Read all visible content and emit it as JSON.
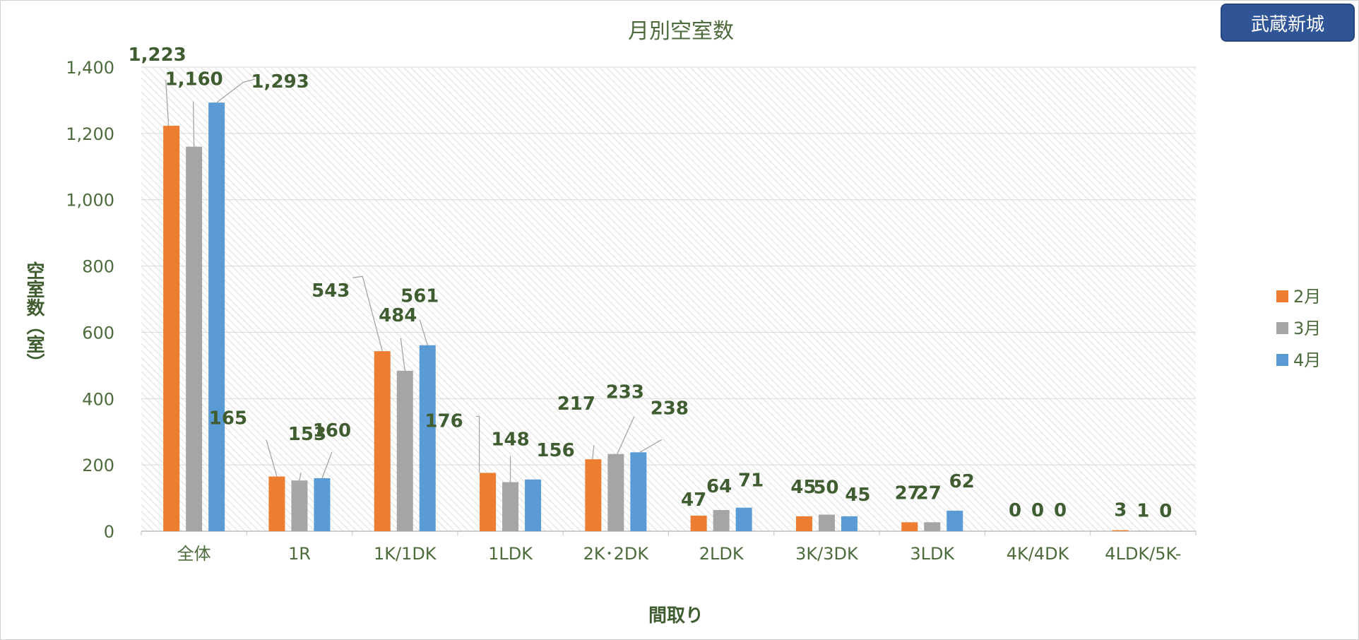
{
  "badge": "武蔵新城",
  "chart_data": {
    "type": "bar",
    "title": "月別空室数",
    "xlabel": "間取り",
    "ylabel": "空室数（室）",
    "ylim": [
      0,
      1400
    ],
    "yticks": [
      0,
      200,
      400,
      600,
      800,
      1000,
      1200,
      1400
    ],
    "ytick_labels": [
      "0",
      "200",
      "400",
      "600",
      "800",
      "1,000",
      "1,200",
      "1,400"
    ],
    "categories": [
      "全体",
      "1R",
      "1K/1DK",
      "1LDK",
      "2K･2DK",
      "2LDK",
      "3K/3DK",
      "3LDK",
      "4K/4DK",
      "4LDK/5K-"
    ],
    "series": [
      {
        "name": "2月",
        "color": "#ed7d31",
        "values": [
          1223,
          165,
          543,
          176,
          217,
          47,
          45,
          27,
          0,
          3
        ],
        "labels": [
          "1,223",
          "165",
          "543",
          "176",
          "217",
          "47",
          "45",
          "27",
          "0",
          "3"
        ]
      },
      {
        "name": "3月",
        "color": "#a5a5a5",
        "values": [
          1160,
          153,
          484,
          148,
          233,
          64,
          50,
          27,
          0,
          1
        ],
        "labels": [
          "1,160",
          "153",
          "484",
          "148",
          "233",
          "64",
          "50",
          "27",
          "0",
          "1"
        ]
      },
      {
        "name": "4月",
        "color": "#5b9bd5",
        "values": [
          1293,
          160,
          561,
          156,
          238,
          71,
          45,
          62,
          0,
          0
        ],
        "labels": [
          "1,293",
          "160",
          "561",
          "156",
          "238",
          "71",
          "45",
          "62",
          "0",
          "0"
        ]
      }
    ],
    "grid": true,
    "legend": "right"
  }
}
